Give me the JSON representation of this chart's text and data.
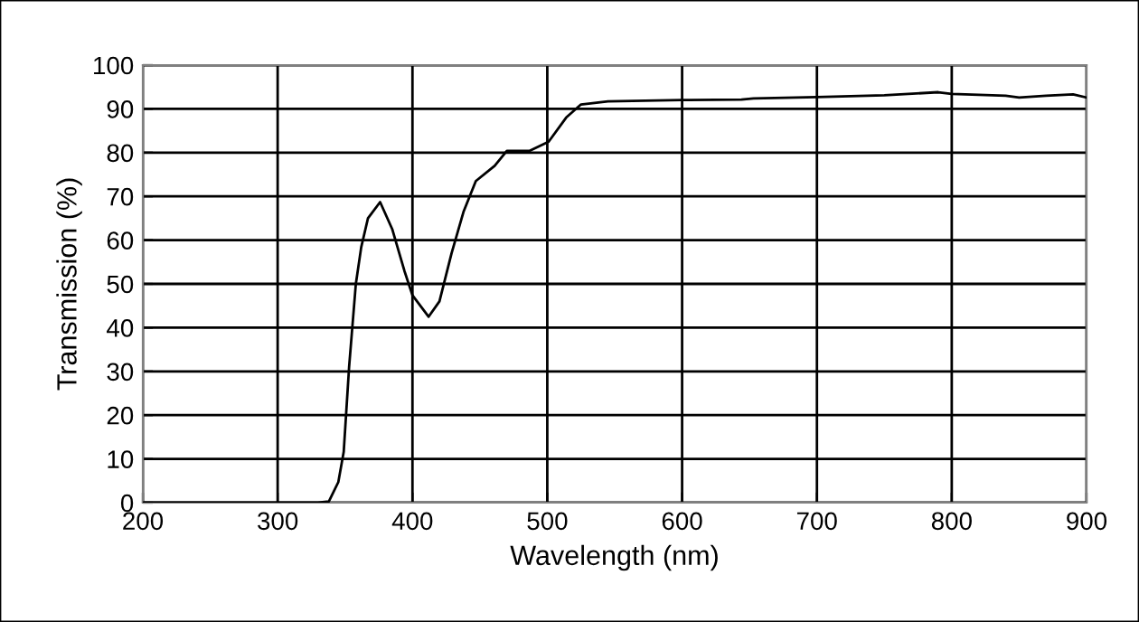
{
  "chart_data": {
    "type": "line",
    "xlabel": "Wavelength (nm)",
    "ylabel": "Transmission (%)",
    "xlim": [
      200,
      900
    ],
    "ylim": [
      0,
      100
    ],
    "xticks": [
      200,
      300,
      400,
      500,
      600,
      700,
      800,
      900
    ],
    "yticks": [
      0,
      10,
      20,
      30,
      40,
      50,
      60,
      70,
      80,
      90,
      100
    ],
    "grid": true,
    "marker": "none",
    "line_style": "solid",
    "series": [
      {
        "color": "#000000",
        "x": [
          200,
          300,
          330,
          338,
          345,
          349,
          353,
          358,
          362,
          367,
          376,
          385,
          394,
          400,
          412,
          420,
          429,
          438,
          447,
          461,
          470,
          487,
          501,
          514,
          525,
          545,
          600,
          644,
          653,
          700,
          750,
          790,
          800,
          840,
          850,
          870,
          890,
          900
        ],
        "values": [
          0,
          0,
          0,
          0.3,
          4.7,
          11.6,
          31,
          50,
          58.4,
          65,
          68.7,
          62.5,
          53,
          47.4,
          42.5,
          46,
          57,
          66.6,
          73.5,
          77,
          80.4,
          80.4,
          82.5,
          88,
          91,
          91.7,
          92,
          92.1,
          92.4,
          92.7,
          93.1,
          93.8,
          93.4,
          93,
          92.6,
          93,
          93.3,
          92.6
        ]
      }
    ]
  }
}
